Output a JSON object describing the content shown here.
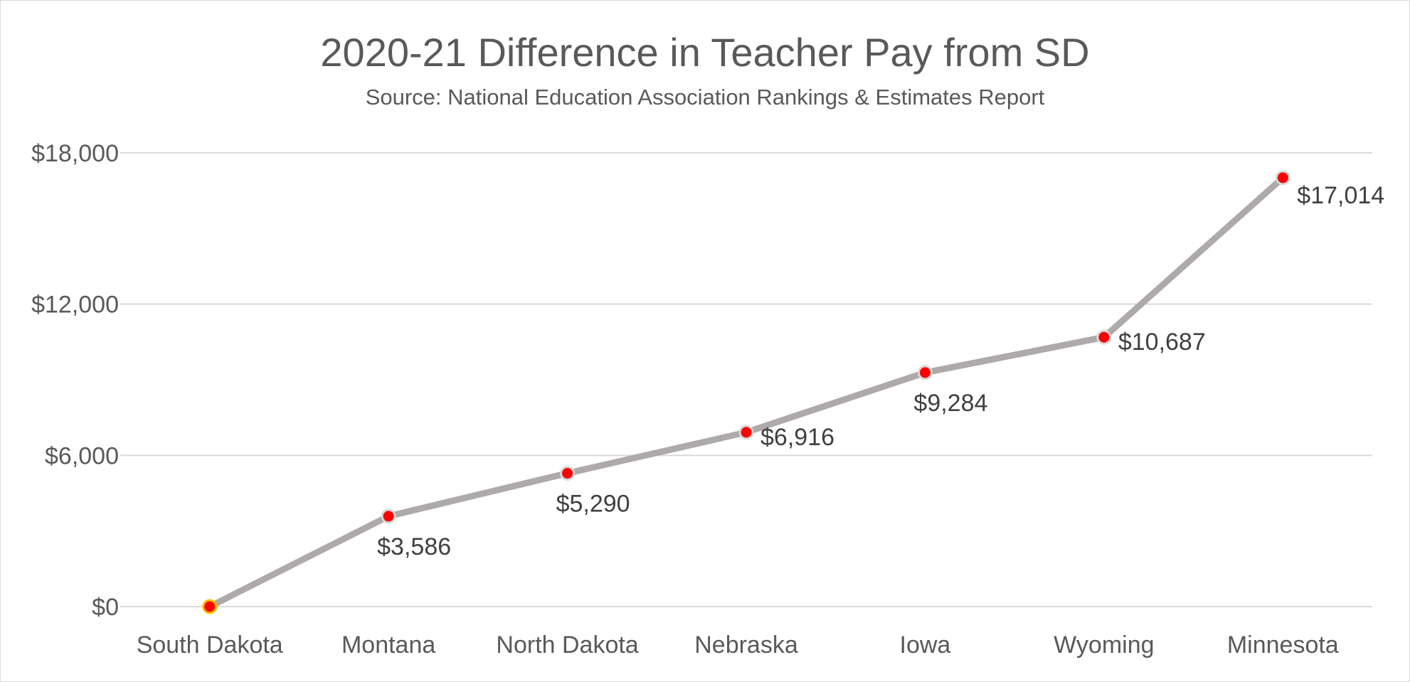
{
  "chart_data": {
    "type": "line",
    "title": "2020-21 Difference in Teacher Pay from SD",
    "subtitle": "Source: National Education Association Rankings & Estimates Report",
    "categories": [
      "South Dakota",
      "Montana",
      "North Dakota",
      "Nebraska",
      "Iowa",
      "Wyoming",
      "Minnesota"
    ],
    "values": [
      0,
      3586,
      5290,
      6916,
      9284,
      10687,
      17014
    ],
    "data_labels": [
      "",
      "$3,586",
      "$5,290",
      "$6,916",
      "$9,284",
      "$10,687",
      "$17,014"
    ],
    "label_positions": [
      "none",
      "below",
      "below",
      "right",
      "below",
      "right",
      "below-right"
    ],
    "ylim": [
      0,
      18000
    ],
    "yticks": [
      0,
      6000,
      12000,
      18000
    ],
    "ytick_labels": [
      "$0",
      "$6,000",
      "$12,000",
      "$18,000"
    ],
    "xlabel": "",
    "ylabel": "",
    "grid": true,
    "legend": "none",
    "colors": {
      "line": "#aeaaaa",
      "marker": "#ff0000",
      "marker_edge": "#d9d9d9",
      "first_marker_edge": "#ffc000",
      "grid": "#d9d9d9"
    }
  }
}
